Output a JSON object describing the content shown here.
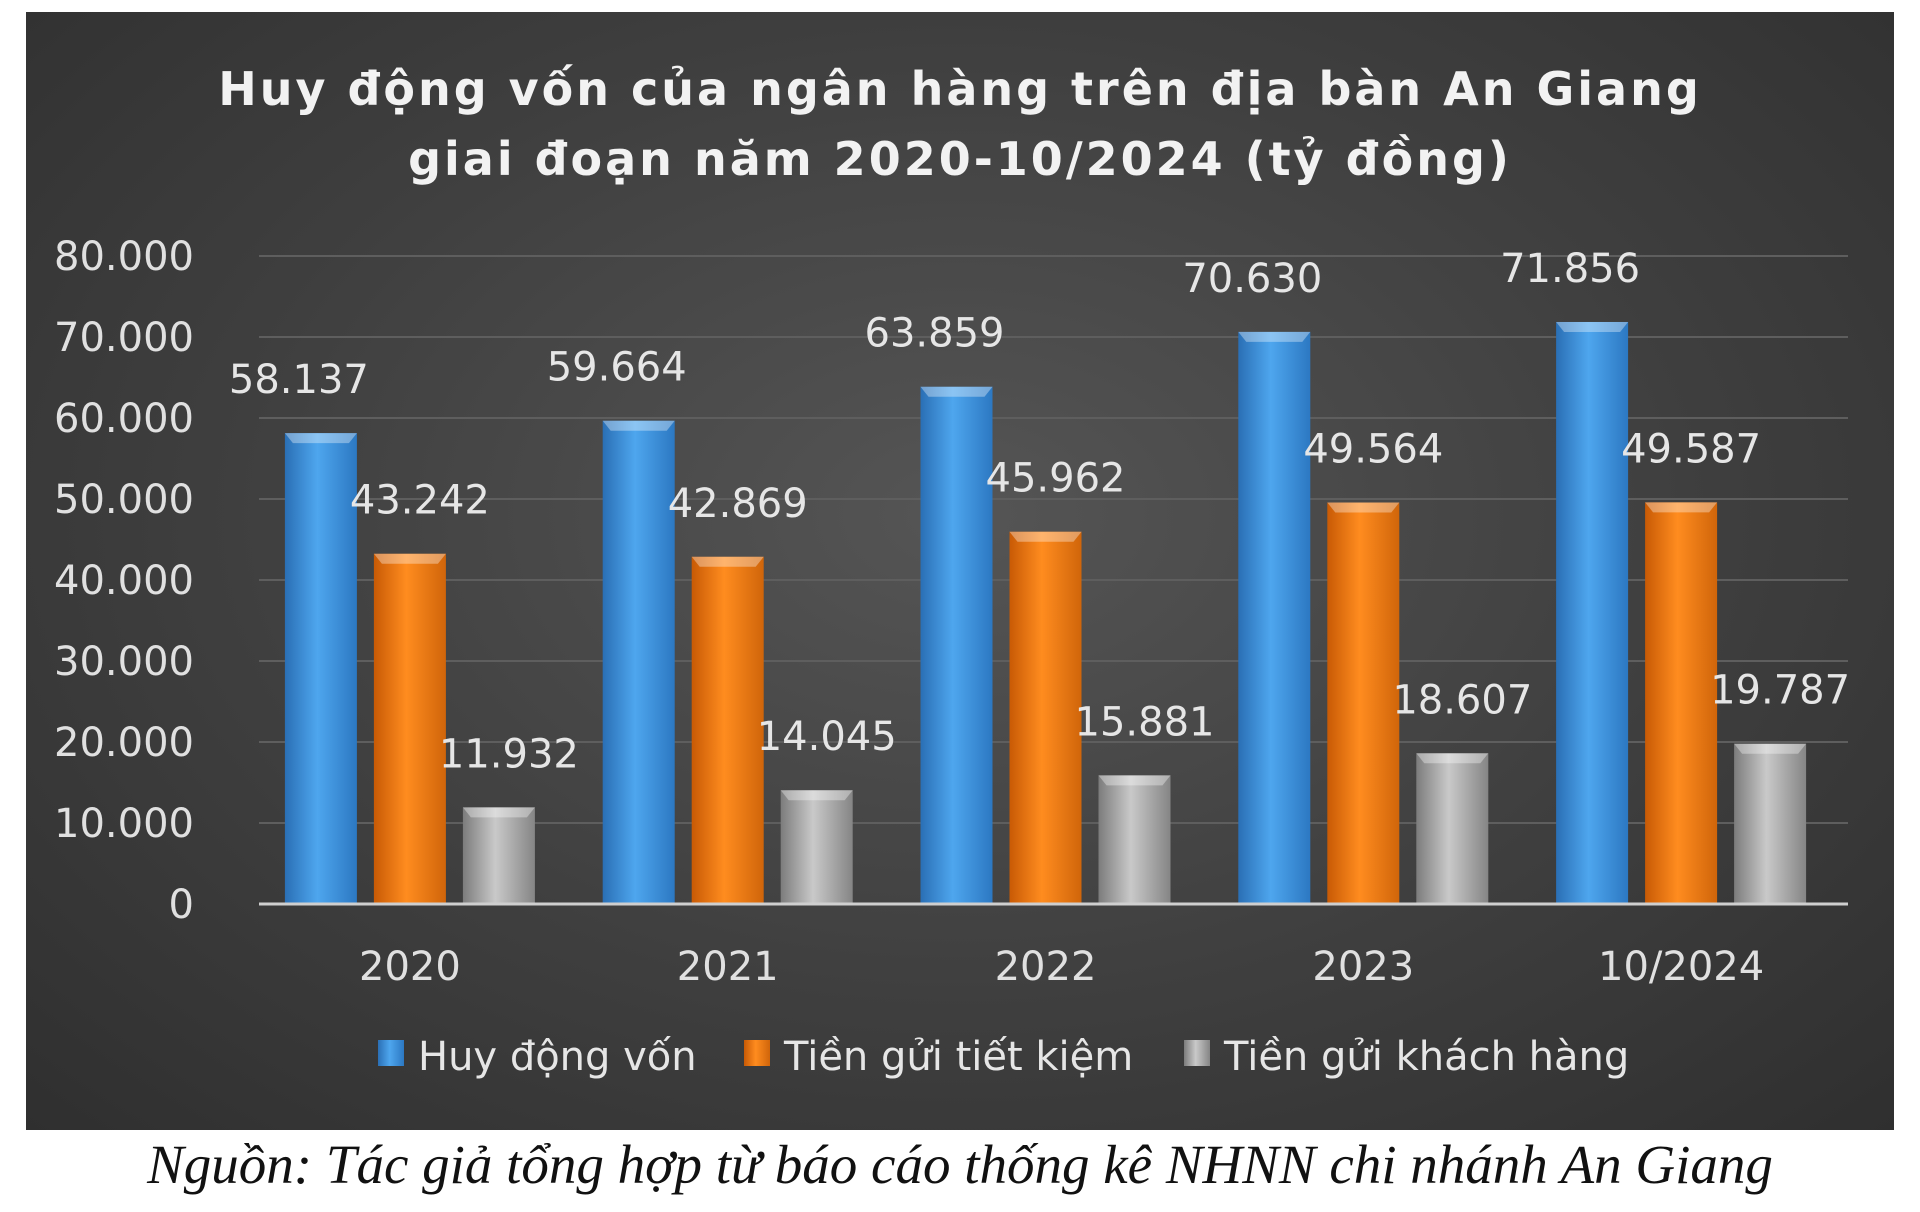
{
  "chart_data": {
    "type": "bar",
    "title_lines": [
      "Huy động vốn của ngân hàng trên địa bàn An Giang",
      "giai đoạn năm 2020-10/2024 (tỷ đồng)"
    ],
    "categories": [
      "2020",
      "2021",
      "2022",
      "2023",
      "10/2024"
    ],
    "series": [
      {
        "name": "Huy động vốn",
        "values": [
          58137,
          59664,
          63859,
          70630,
          71856
        ],
        "labels": [
          "58.137",
          "59.664",
          "63.859",
          "70.630",
          "71.856"
        ],
        "color": "#3d95e0"
      },
      {
        "name": "Tiền gửi tiết kiệm",
        "values": [
          43242,
          42869,
          45962,
          49564,
          49587
        ],
        "labels": [
          "43.242",
          "42.869",
          "45.962",
          "49.564",
          "49.587"
        ],
        "color": "#f07a14"
      },
      {
        "name": "Tiền gửi khách hàng",
        "values": [
          11932,
          14045,
          15881,
          18607,
          19787
        ],
        "labels": [
          "11.932",
          "14.045",
          "15.881",
          "18.607",
          "19.787"
        ],
        "color": "#a9a9a9"
      }
    ],
    "ylim": [
      0,
      80000
    ],
    "yticks": [
      {
        "value": 0,
        "label": "0"
      },
      {
        "value": 10000,
        "label": "10.000"
      },
      {
        "value": 20000,
        "label": "20.000"
      },
      {
        "value": 30000,
        "label": "30.000"
      },
      {
        "value": 40000,
        "label": "40.000"
      },
      {
        "value": 50000,
        "label": "50.000"
      },
      {
        "value": 60000,
        "label": "60.000"
      },
      {
        "value": 70000,
        "label": "70.000"
      },
      {
        "value": 80000,
        "label": "80.000"
      }
    ],
    "grid": true,
    "legend": "bottom",
    "background": "#404040"
  },
  "source_note": "Nguồn: Tác giả tổng hợp từ báo cáo thống kê NHNN chi nhánh An Giang"
}
